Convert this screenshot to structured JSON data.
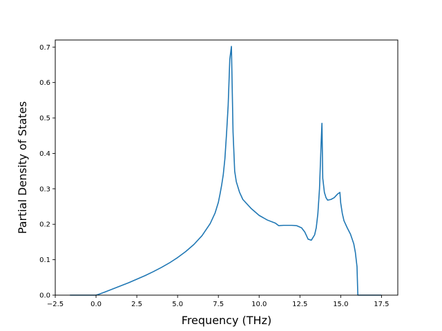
{
  "chart_data": {
    "type": "line",
    "title": "",
    "xlabel": "Frequency (THz)",
    "ylabel": "Partial Density of States",
    "xlim": [
      -2.5,
      18.5
    ],
    "ylim": [
      0.0,
      0.72
    ],
    "xticks": [
      -2.5,
      0.0,
      2.5,
      5.0,
      7.5,
      10.0,
      12.5,
      15.0,
      17.5
    ],
    "xtick_labels": [
      "−2.5",
      "0.0",
      "2.5",
      "5.0",
      "7.5",
      "10.0",
      "12.5",
      "15.0",
      "17.5"
    ],
    "yticks": [
      0.0,
      0.1,
      0.2,
      0.3,
      0.4,
      0.5,
      0.6,
      0.7
    ],
    "ytick_labels": [
      "0.0",
      "0.1",
      "0.2",
      "0.3",
      "0.4",
      "0.5",
      "0.6",
      "0.7"
    ],
    "grid": false,
    "legend": false,
    "series": [
      {
        "color": "#1f77b4",
        "x": [
          -1.6,
          0.0,
          0.2,
          0.5,
          1.0,
          1.5,
          2.0,
          2.5,
          3.0,
          3.5,
          4.0,
          4.5,
          5.0,
          5.5,
          6.0,
          6.5,
          7.0,
          7.3,
          7.5,
          7.6,
          7.7,
          7.8,
          7.9,
          8.0,
          8.1,
          8.2,
          8.3,
          8.4,
          8.5,
          8.6,
          8.8,
          9.0,
          9.5,
          10.0,
          10.5,
          11.0,
          11.2,
          11.5,
          12.0,
          12.3,
          12.6,
          12.8,
          13.0,
          13.2,
          13.4,
          13.5,
          13.6,
          13.7,
          13.8,
          13.85,
          13.9,
          14.0,
          14.1,
          14.2,
          14.4,
          14.6,
          14.8,
          14.95,
          15.0,
          15.1,
          15.2,
          15.4,
          15.6,
          15.8,
          15.9,
          16.0,
          16.05,
          16.1,
          17.5
        ],
        "y": [
          0.0,
          0.0,
          0.003,
          0.008,
          0.017,
          0.026,
          0.035,
          0.045,
          0.055,
          0.066,
          0.078,
          0.091,
          0.106,
          0.123,
          0.143,
          0.168,
          0.202,
          0.232,
          0.262,
          0.285,
          0.31,
          0.34,
          0.385,
          0.455,
          0.535,
          0.665,
          0.702,
          0.46,
          0.35,
          0.32,
          0.29,
          0.27,
          0.245,
          0.225,
          0.212,
          0.203,
          0.196,
          0.197,
          0.197,
          0.196,
          0.19,
          0.178,
          0.158,
          0.155,
          0.17,
          0.19,
          0.23,
          0.3,
          0.43,
          0.485,
          0.33,
          0.29,
          0.275,
          0.268,
          0.27,
          0.275,
          0.285,
          0.29,
          0.26,
          0.23,
          0.21,
          0.19,
          0.172,
          0.145,
          0.12,
          0.08,
          0.0,
          0.0,
          0.0
        ]
      }
    ]
  }
}
